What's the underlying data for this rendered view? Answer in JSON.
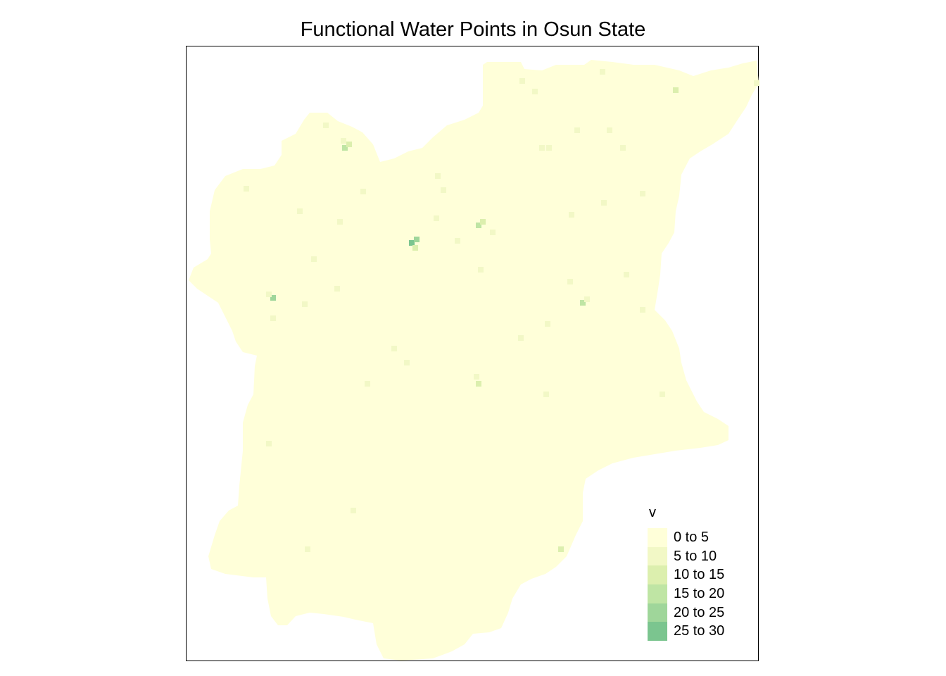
{
  "title": "Functional Water Points in Osun State",
  "legend": {
    "title": "v",
    "classes": [
      {
        "label": "0 to 5",
        "color": "#FFFFD9"
      },
      {
        "label": "5 to 10",
        "color": "#F2F8C6"
      },
      {
        "label": "10 to 15",
        "color": "#DCEFAE"
      },
      {
        "label": "15 to 20",
        "color": "#BFE5A4"
      },
      {
        "label": "20 to 25",
        "color": "#9FD69A"
      },
      {
        "label": "25 to 30",
        "color": "#7BC58F"
      }
    ]
  }
}
